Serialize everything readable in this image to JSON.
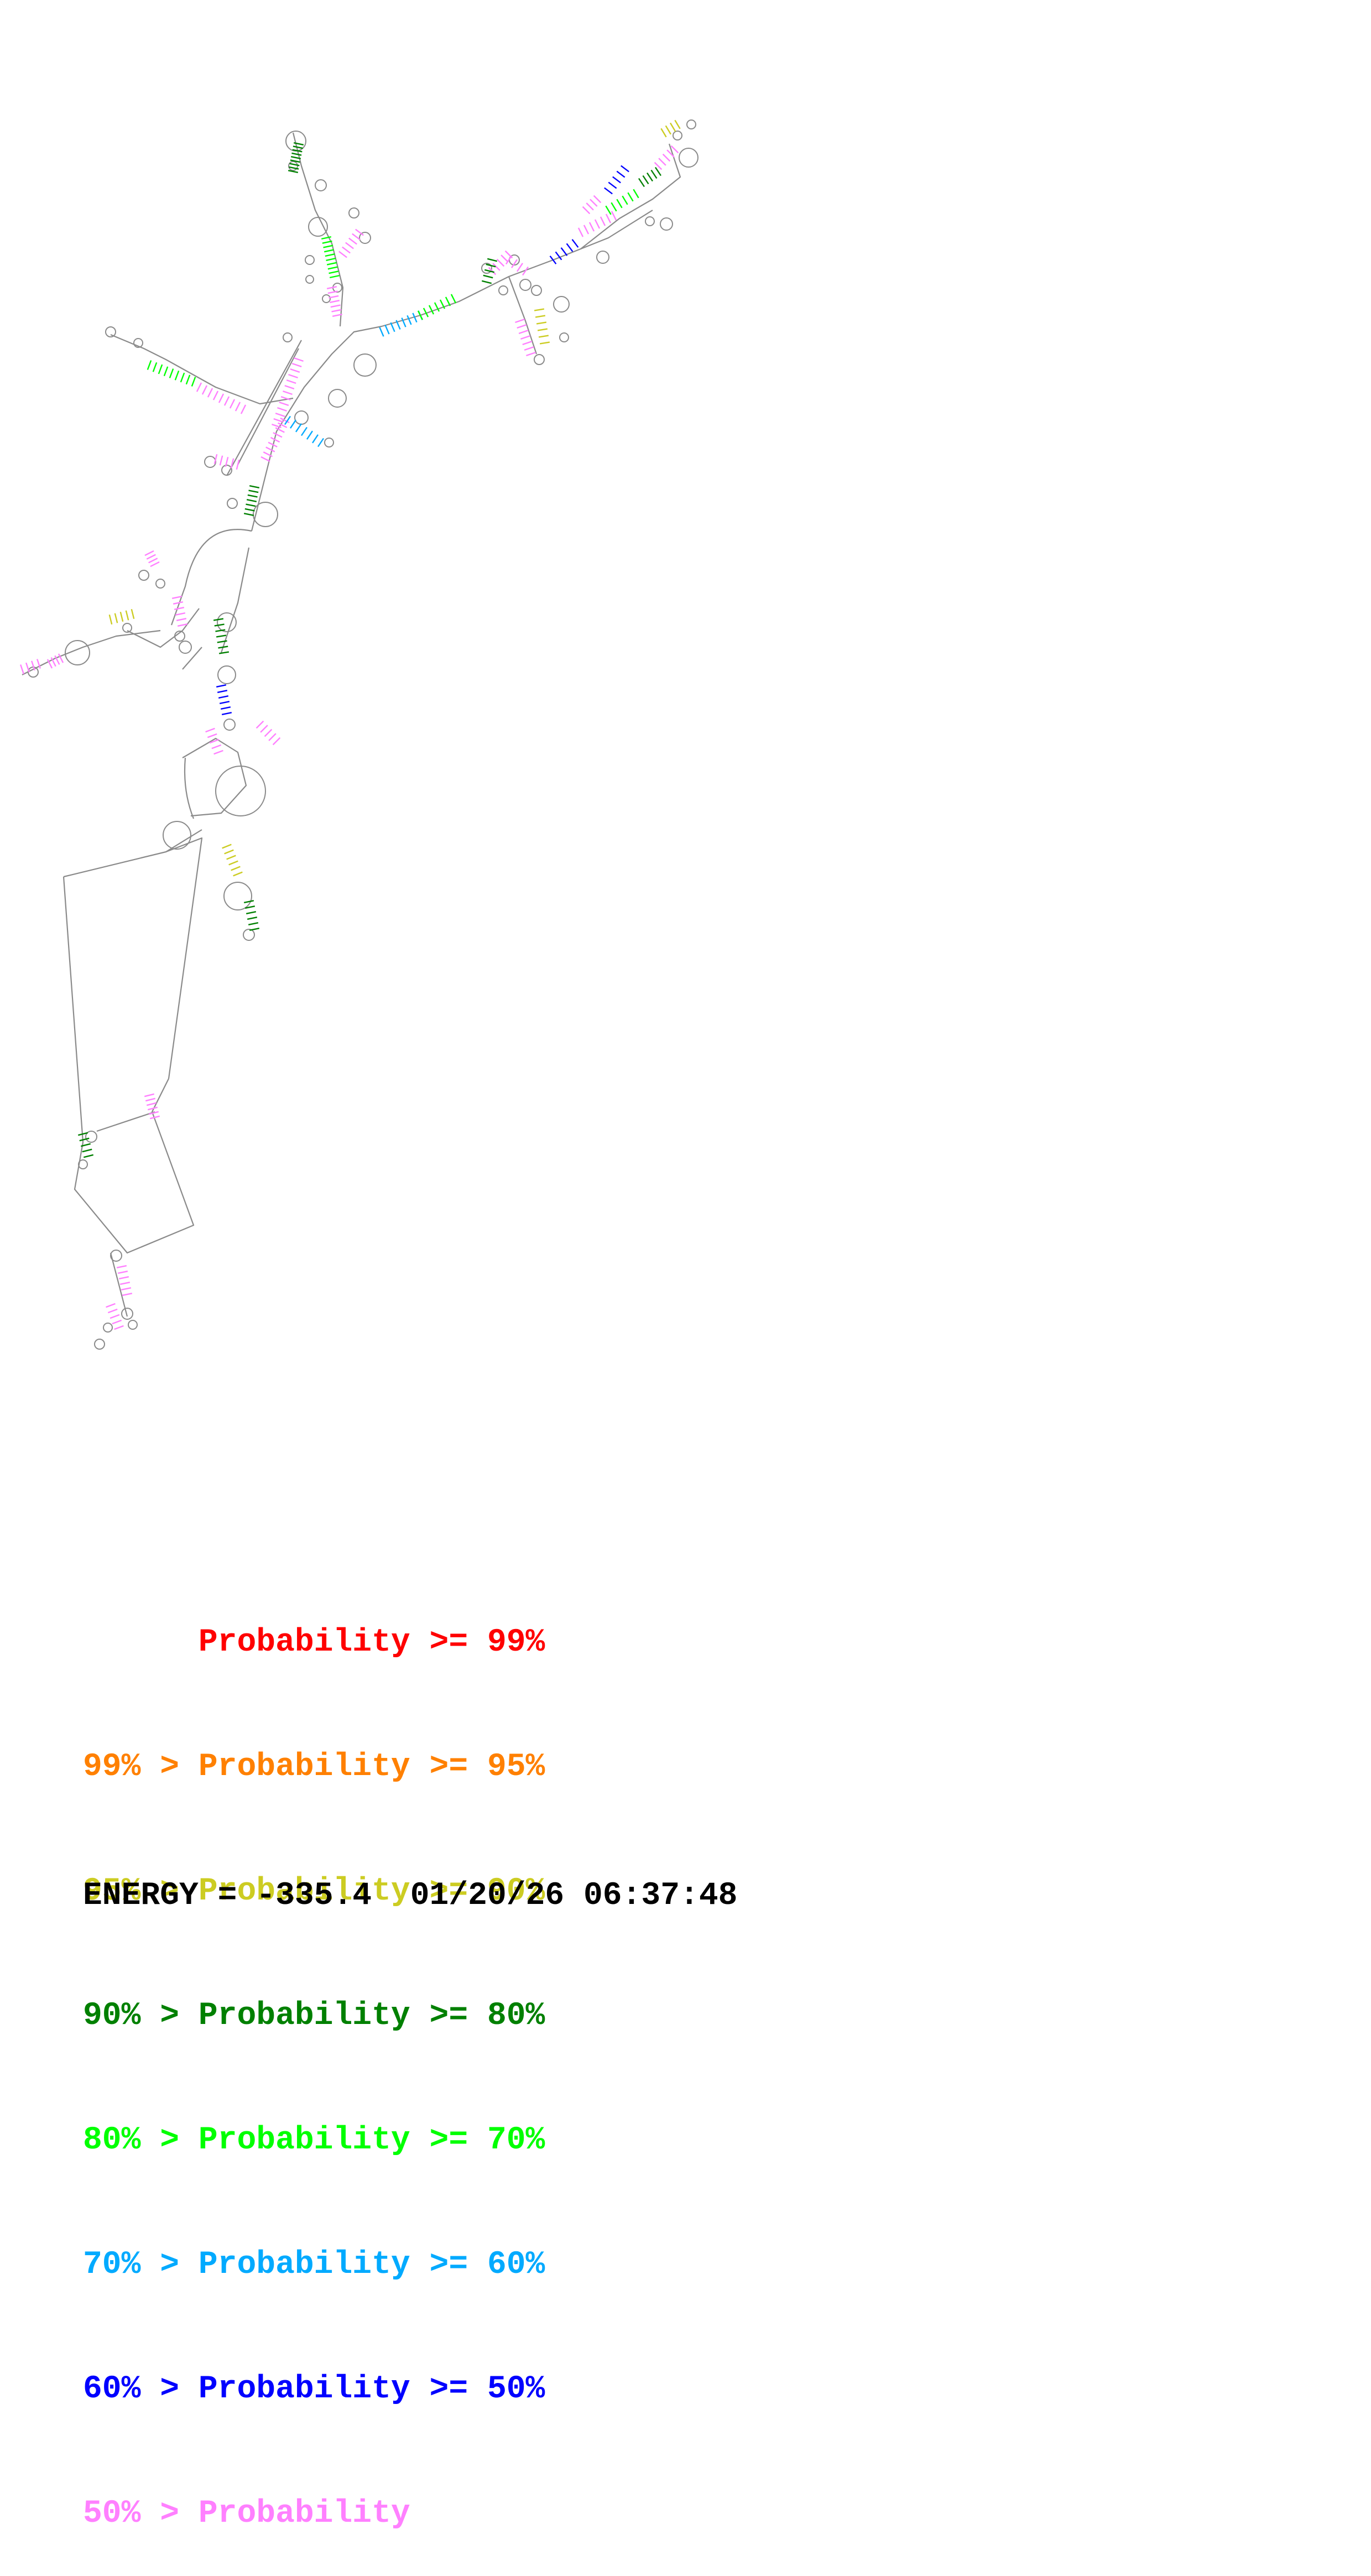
{
  "legend": {
    "items": [
      {
        "prefix": "",
        "label": "Probability",
        "suffix": ">= 99%",
        "color": "#ff0000"
      },
      {
        "prefix": "99% >",
        "label": "Probability",
        "suffix": ">= 95%",
        "color": "#ff8000"
      },
      {
        "prefix": "95% >",
        "label": "Probability",
        "suffix": ">= 90%",
        "color": "#cccc22"
      },
      {
        "prefix": "90% >",
        "label": "Probability",
        "suffix": ">= 80%",
        "color": "#008000"
      },
      {
        "prefix": "80% >",
        "label": "Probability",
        "suffix": ">= 70%",
        "color": "#00ff00"
      },
      {
        "prefix": "70% >",
        "label": "Probability",
        "suffix": ">= 60%",
        "color": "#00aaff"
      },
      {
        "prefix": "60% >",
        "label": "Probability",
        "suffix": ">= 50%",
        "color": "#0000ff"
      },
      {
        "prefix": "50% >",
        "label": "Probability",
        "suffix": "",
        "color": "#ff80ff"
      }
    ]
  },
  "footer": {
    "energy_label": "ENERGY =",
    "energy_value": "-335.4",
    "timestamp": "01/20/26 06:37:48"
  }
}
